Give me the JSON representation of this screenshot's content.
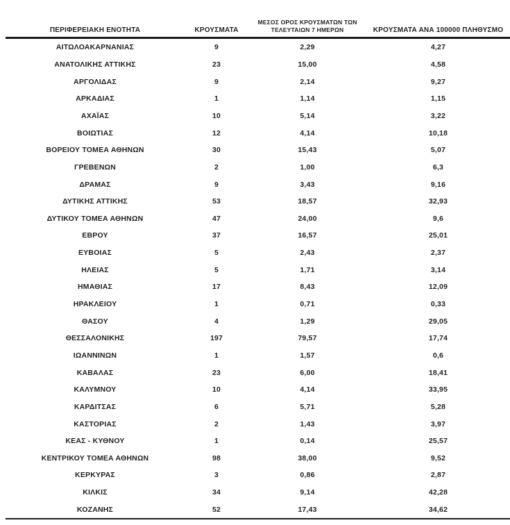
{
  "document": {
    "type": "regional-covid-cases-table",
    "language": "el"
  },
  "colors": {
    "background": "#ffffff",
    "text": "#1f1f1f",
    "rule": "#1a1a1a"
  },
  "table": {
    "headers": [
      {
        "label": "ΠΕΡΙΦΕΡΕΙΑΚΗ ΕΝΟΤΗΤΑ"
      },
      {
        "label": "ΚΡΟΥΣΜΑΤΑ"
      },
      {
        "label_line1": "ΜΕΣΟΣ ΟΡΟΣ ΚΡΟΥΣΜΑΤΩΝ ΤΩΝ",
        "label_line2": "ΤΕΛΕΥΤΑΙΩΝ 7 ΗΜΕΡΩΝ"
      },
      {
        "label": "ΚΡΟΥΣΜΑΤΑ ΑΝΑ 100000 ΠΛΗΘΥΣΜΟ"
      }
    ],
    "rows": [
      {
        "region": "ΑΙΤΩΛΟΑΚΑΡΝΑΝΙΑΣ",
        "cases": "9",
        "avg_7day": "2,29",
        "per_100k": "4,27"
      },
      {
        "region": "ΑΝΑΤΟΛΙΚΗΣ ΑΤΤΙΚΗΣ",
        "cases": "23",
        "avg_7day": "15,00",
        "per_100k": "4,58"
      },
      {
        "region": "ΑΡΓΟΛΙΔΑΣ",
        "cases": "9",
        "avg_7day": "2,14",
        "per_100k": "9,27"
      },
      {
        "region": "ΑΡΚΑΔΙΑΣ",
        "cases": "1",
        "avg_7day": "1,14",
        "per_100k": "1,15"
      },
      {
        "region": "ΑΧΑΪΑΣ",
        "cases": "10",
        "avg_7day": "5,14",
        "per_100k": "3,22"
      },
      {
        "region": "ΒΟΙΩΤΙΑΣ",
        "cases": "12",
        "avg_7day": "4,14",
        "per_100k": "10,18"
      },
      {
        "region": "ΒΟΡΕΙΟΥ ΤΟΜΕΑ ΑΘΗΝΩΝ",
        "cases": "30",
        "avg_7day": "15,43",
        "per_100k": "5,07"
      },
      {
        "region": "ΓΡΕΒΕΝΩΝ",
        "cases": "2",
        "avg_7day": "1,00",
        "per_100k": "6,3"
      },
      {
        "region": "ΔΡΑΜΑΣ",
        "cases": "9",
        "avg_7day": "3,43",
        "per_100k": "9,16"
      },
      {
        "region": "ΔΥΤΙΚΗΣ ΑΤΤΙΚΗΣ",
        "cases": "53",
        "avg_7day": "18,57",
        "per_100k": "32,93"
      },
      {
        "region": "ΔΥΤΙΚΟΥ ΤΟΜΕΑ ΑΘΗΝΩΝ",
        "cases": "47",
        "avg_7day": "24,00",
        "per_100k": "9,6"
      },
      {
        "region": "ΕΒΡΟΥ",
        "cases": "37",
        "avg_7day": "16,57",
        "per_100k": "25,01"
      },
      {
        "region": "ΕΥΒΟΙΑΣ",
        "cases": "5",
        "avg_7day": "2,43",
        "per_100k": "2,37"
      },
      {
        "region": "ΗΛΕΙΑΣ",
        "cases": "5",
        "avg_7day": "1,71",
        "per_100k": "3,14"
      },
      {
        "region": "ΗΜΑΘΙΑΣ",
        "cases": "17",
        "avg_7day": "8,43",
        "per_100k": "12,09"
      },
      {
        "region": "ΗΡΑΚΛΕΙΟΥ",
        "cases": "1",
        "avg_7day": "0,71",
        "per_100k": "0,33"
      },
      {
        "region": "ΘΑΣΟΥ",
        "cases": "4",
        "avg_7day": "1,29",
        "per_100k": "29,05"
      },
      {
        "region": "ΘΕΣΣΑΛΟΝΙΚΗΣ",
        "cases": "197",
        "avg_7day": "79,57",
        "per_100k": "17,74"
      },
      {
        "region": "ΙΩΑΝΝΙΝΩΝ",
        "cases": "1",
        "avg_7day": "1,57",
        "per_100k": "0,6"
      },
      {
        "region": "ΚΑΒΑΛΑΣ",
        "cases": "23",
        "avg_7day": "6,00",
        "per_100k": "18,41"
      },
      {
        "region": "ΚΑΛΥΜΝΟΥ",
        "cases": "10",
        "avg_7day": "4,14",
        "per_100k": "33,95"
      },
      {
        "region": "ΚΑΡΔΙΤΣΑΣ",
        "cases": "6",
        "avg_7day": "5,71",
        "per_100k": "5,28"
      },
      {
        "region": "ΚΑΣΤΟΡΙΑΣ",
        "cases": "2",
        "avg_7day": "1,43",
        "per_100k": "3,97"
      },
      {
        "region": "ΚΕΑΣ - ΚΥΘΝΟΥ",
        "cases": "1",
        "avg_7day": "0,14",
        "per_100k": "25,57"
      },
      {
        "region": "ΚΕΝΤΡΙΚΟΥ ΤΟΜΕΑ ΑΘΗΝΩΝ",
        "cases": "98",
        "avg_7day": "38,00",
        "per_100k": "9,52"
      },
      {
        "region": "ΚΕΡΚΥΡΑΣ",
        "cases": "3",
        "avg_7day": "0,86",
        "per_100k": "2,87"
      },
      {
        "region": "ΚΙΛΚΙΣ",
        "cases": "34",
        "avg_7day": "9,14",
        "per_100k": "42,28"
      },
      {
        "region": "ΚΟΖΑΝΗΣ",
        "cases": "52",
        "avg_7day": "17,43",
        "per_100k": "34,62"
      }
    ]
  }
}
